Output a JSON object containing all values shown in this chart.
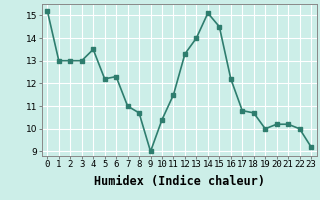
{
  "x": [
    0,
    1,
    2,
    3,
    4,
    5,
    6,
    7,
    8,
    9,
    10,
    11,
    12,
    13,
    14,
    15,
    16,
    17,
    18,
    19,
    20,
    21,
    22,
    23
  ],
  "y": [
    15.2,
    13.0,
    13.0,
    13.0,
    13.5,
    12.2,
    12.3,
    11.0,
    10.7,
    9.0,
    10.4,
    11.5,
    13.3,
    14.0,
    15.1,
    14.5,
    12.2,
    10.8,
    10.7,
    10.0,
    10.2,
    10.2,
    10.0,
    9.2
  ],
  "xlabel": "Humidex (Indice chaleur)",
  "line_color": "#2e7d6e",
  "marker": "s",
  "marker_size": 2.5,
  "bg_color": "#cceee8",
  "grid_color": "#ffffff",
  "ylim": [
    8.8,
    15.5
  ],
  "xlim": [
    -0.5,
    23.5
  ],
  "yticks": [
    9,
    10,
    11,
    12,
    13,
    14,
    15
  ],
  "xtick_labels": [
    "0",
    "1",
    "2",
    "3",
    "4",
    "5",
    "6",
    "7",
    "8",
    "9",
    "10",
    "11",
    "12",
    "13",
    "14",
    "15",
    "16",
    "17",
    "18",
    "19",
    "20",
    "21",
    "22",
    "23"
  ],
  "tick_fontsize": 6.5,
  "xlabel_fontsize": 8.5,
  "linewidth": 1.2
}
